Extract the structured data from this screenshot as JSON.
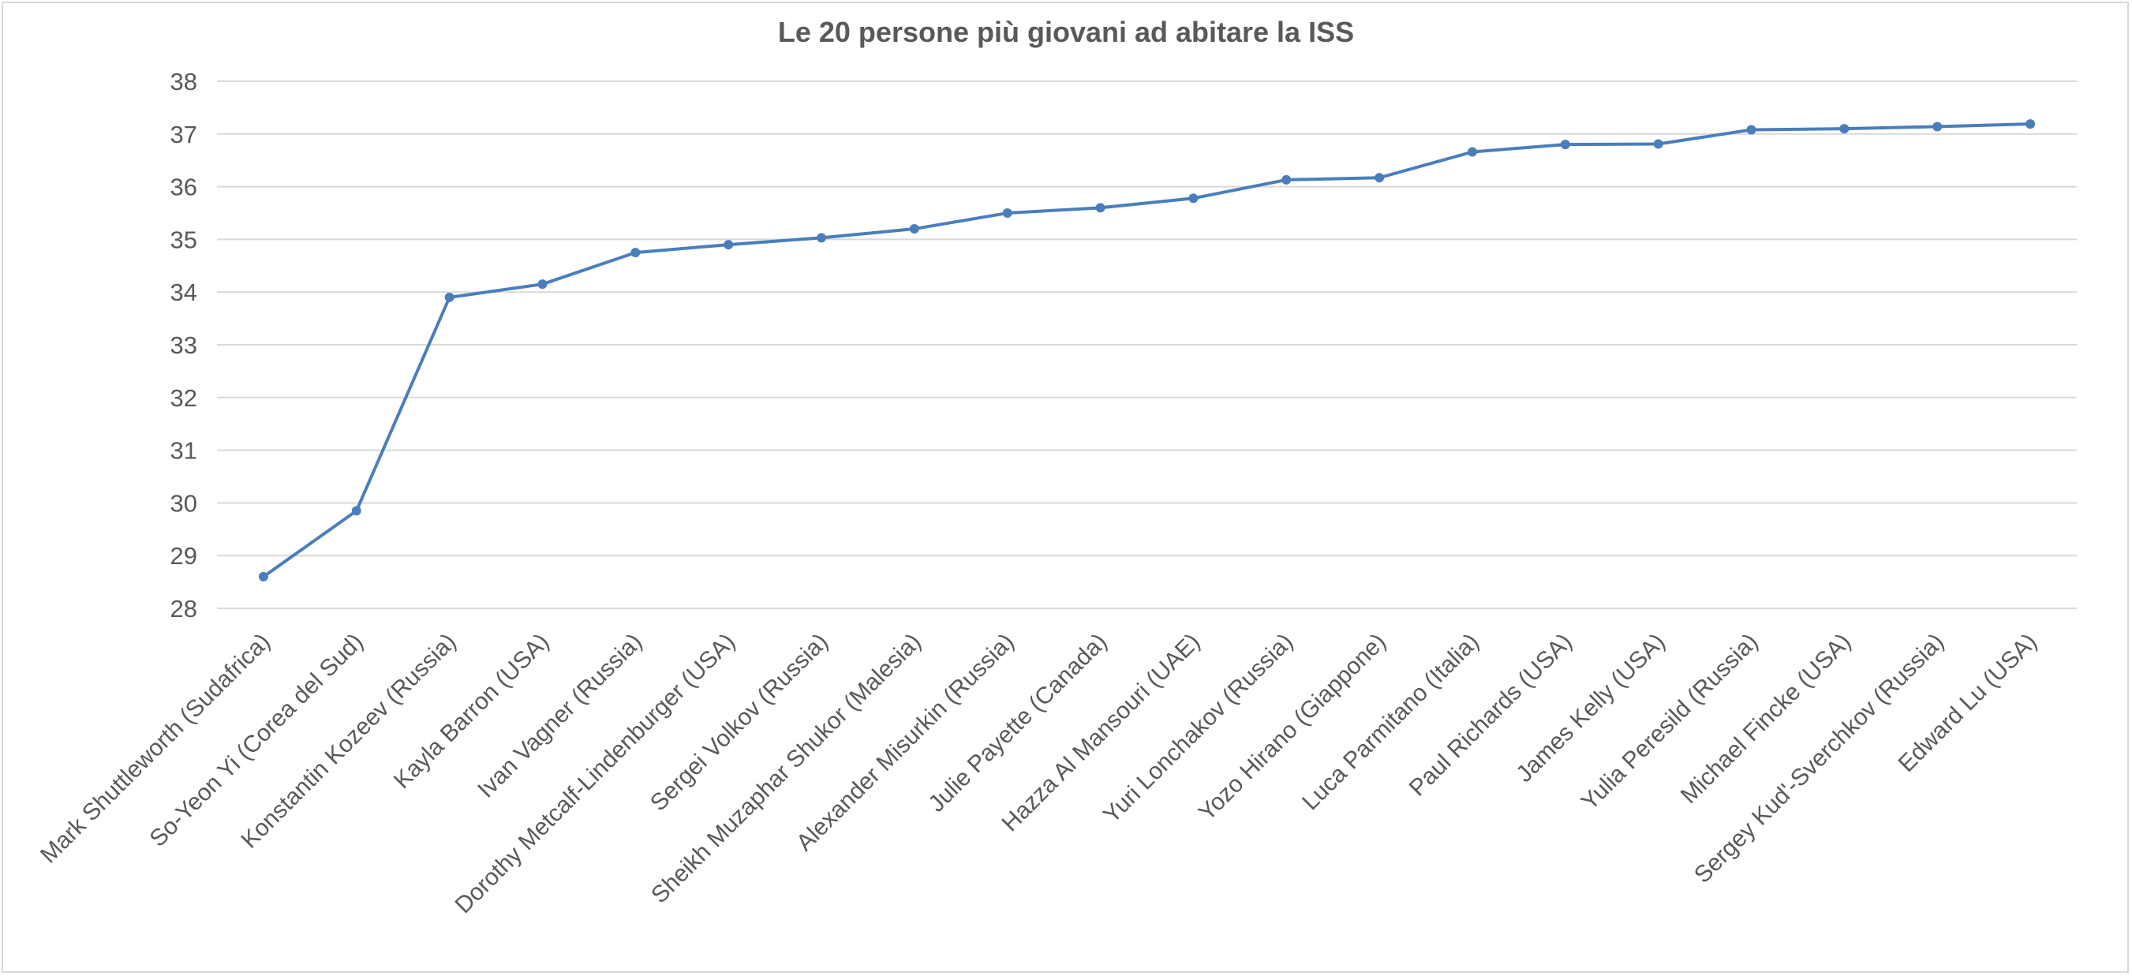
{
  "chart_data": {
    "type": "line",
    "title": "Le 20 persone più giovani ad abitare la ISS",
    "xlabel": "",
    "ylabel": "",
    "ylim": [
      28,
      38
    ],
    "yticks": [
      28,
      29,
      30,
      31,
      32,
      33,
      34,
      35,
      36,
      37,
      38
    ],
    "grid": true,
    "legend": "none",
    "color": "#4a7ebb",
    "categories": [
      "Mark Shuttleworth (Sudafrica)",
      "So-Yeon Yi (Corea del Sud)",
      "Konstantin Kozeev (Russia)",
      "Kayla Barron (USA)",
      "Ivan Vagner (Russia)",
      "Dorothy Metcalf-Lindenburger (USA)",
      "Sergei Volkov (Russia)",
      "Sheikh Muzaphar Shukor (Malesia)",
      "Alexander Misurkin (Russia)",
      "Julie Payette (Canada)",
      "Hazza Al Mansouri (UAE)",
      "Yuri Lonchakov (Russia)",
      "Yozo Hirano (Giappone)",
      "Luca Parmitano (Italia)",
      "Paul Richards (USA)",
      "James Kelly (USA)",
      "Yulia Peresild (Russia)",
      "Michael Fincke (USA)",
      "Sergey Kud'-Sverchkov (Russia)",
      "Edward Lu (USA)"
    ],
    "values": [
      28.6,
      29.85,
      33.9,
      34.15,
      34.75,
      34.9,
      35.03,
      35.2,
      35.5,
      35.6,
      35.78,
      36.13,
      36.17,
      36.66,
      36.8,
      36.81,
      37.08,
      37.1,
      37.14,
      37.19
    ]
  }
}
